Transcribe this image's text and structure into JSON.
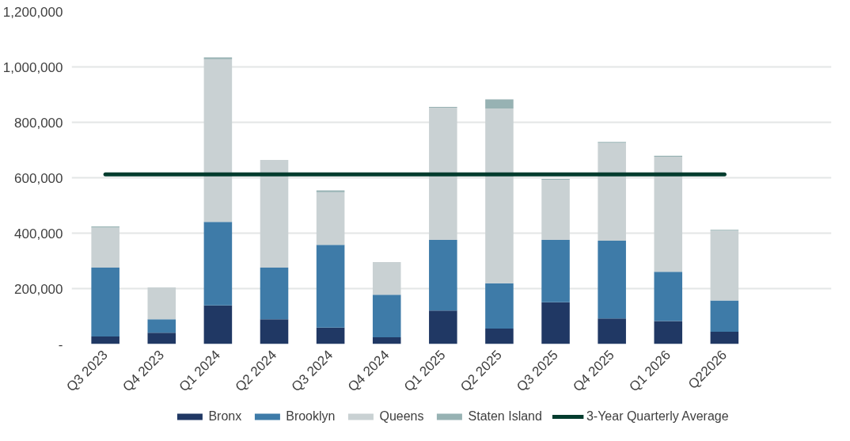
{
  "chart_data": {
    "type": "bar",
    "stacked": true,
    "categories": [
      "Q3 2023",
      "Q4 2023",
      "Q1 2024",
      "Q2 2024",
      "Q3 2024",
      "Q4 2024",
      "Q1 2025",
      "Q2 2025",
      "Q3 2025",
      "Q4 2025",
      "Q1 2026",
      "Q22026"
    ],
    "series": [
      {
        "name": "Bronx",
        "color": "#203864",
        "values": [
          27000,
          41000,
          139000,
          89000,
          59000,
          24000,
          121000,
          56000,
          151000,
          92000,
          83000,
          44000
        ]
      },
      {
        "name": "Brooklyn",
        "color": "#3e7ba8",
        "values": [
          249000,
          48000,
          302000,
          187000,
          299000,
          154000,
          255000,
          163000,
          225000,
          281000,
          178000,
          113000
        ]
      },
      {
        "name": "Queens",
        "color": "#c9d1d3",
        "values": [
          145000,
          115000,
          587000,
          388000,
          190000,
          118000,
          477000,
          631000,
          217000,
          353000,
          415000,
          252000
        ]
      },
      {
        "name": "Staten Island",
        "color": "#97b2b3",
        "values": [
          3000,
          0,
          6000,
          0,
          6000,
          0,
          3000,
          33000,
          3000,
          3000,
          3000,
          3000
        ]
      },
      {
        "name": "3-Year Quarterly Average",
        "type": "line",
        "color": "#023c2e",
        "values": [
          612000,
          612000,
          612000,
          612000,
          612000,
          612000,
          612000,
          612000,
          612000,
          612000,
          612000,
          612000
        ]
      }
    ],
    "ylim": [
      0,
      1200000
    ],
    "yticks": [
      {
        "value": 0,
        "label": "-"
      },
      {
        "value": 200000,
        "label": "200,000"
      },
      {
        "value": 400000,
        "label": "400,000"
      },
      {
        "value": 600000,
        "label": "600,000"
      },
      {
        "value": 800000,
        "label": "800,000"
      },
      {
        "value": 1000000,
        "label": "1,000,000"
      },
      {
        "value": 1200000,
        "label": "1,200,000"
      }
    ],
    "grid": "y",
    "legend": "bottom"
  }
}
